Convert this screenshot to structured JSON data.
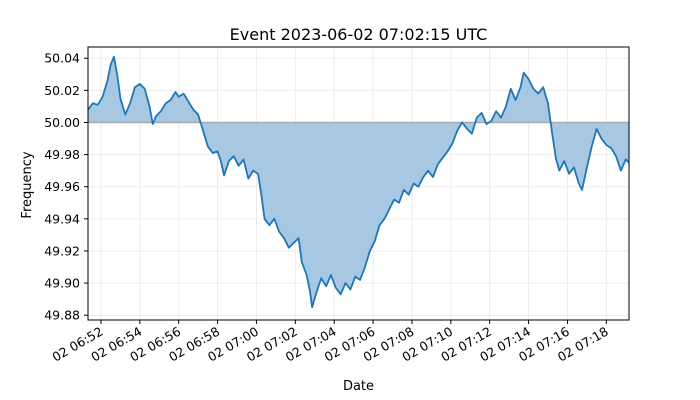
{
  "chart_data": {
    "type": "area",
    "title": "Event 2023-06-02 07:02:15 UTC",
    "xlabel": "Date",
    "ylabel": "Frequency",
    "baseline": 50.0,
    "xlim": [
      "2023-06-02 06:51:20",
      "2023-06-02 07:19:10"
    ],
    "ylim": [
      49.877,
      50.047
    ],
    "grid": true,
    "colors": {
      "line": "#1f77b4",
      "fill": "#a6c8e3",
      "baseline": "#a9a9a9"
    },
    "x_tick_labels": [
      {
        "t": "2023-06-02 06:52",
        "label": "02 06:52"
      },
      {
        "t": "2023-06-02 06:54",
        "label": "02 06:54"
      },
      {
        "t": "2023-06-02 06:56",
        "label": "02 06:56"
      },
      {
        "t": "2023-06-02 06:58",
        "label": "02 06:58"
      },
      {
        "t": "2023-06-02 07:00",
        "label": "02 07:00"
      },
      {
        "t": "2023-06-02 07:02",
        "label": "02 07:02"
      },
      {
        "t": "2023-06-02 07:04",
        "label": "02 07:04"
      },
      {
        "t": "2023-06-02 07:06",
        "label": "02 07:06"
      },
      {
        "t": "2023-06-02 07:08",
        "label": "02 07:08"
      },
      {
        "t": "2023-06-02 07:10",
        "label": "02 07:10"
      },
      {
        "t": "2023-06-02 07:12",
        "label": "02 07:12"
      },
      {
        "t": "2023-06-02 07:14",
        "label": "02 07:14"
      },
      {
        "t": "2023-06-02 07:16",
        "label": "02 07:16"
      },
      {
        "t": "2023-06-02 07:18",
        "label": "02 07:18"
      }
    ],
    "y_tick_labels": [
      {
        "v": 49.88,
        "label": "49.88"
      },
      {
        "v": 49.9,
        "label": "49.90"
      },
      {
        "v": 49.92,
        "label": "49.92"
      },
      {
        "v": 49.94,
        "label": "49.94"
      },
      {
        "v": 49.96,
        "label": "49.96"
      },
      {
        "v": 49.98,
        "label": "49.98"
      },
      {
        "v": 50.0,
        "label": "50.00"
      },
      {
        "v": 50.02,
        "label": "50.02"
      },
      {
        "v": 50.04,
        "label": "50.04"
      }
    ],
    "series": [
      {
        "points": [
          [
            "2023-06-02 06:51:20",
            50.008
          ],
          [
            "2023-06-02 06:51:35",
            50.012
          ],
          [
            "2023-06-02 06:51:50",
            50.011
          ],
          [
            "2023-06-02 06:52:05",
            50.016
          ],
          [
            "2023-06-02 06:52:20",
            50.026
          ],
          [
            "2023-06-02 06:52:30",
            50.036
          ],
          [
            "2023-06-02 06:52:40",
            50.041
          ],
          [
            "2023-06-02 06:52:50",
            50.03
          ],
          [
            "2023-06-02 06:53:00",
            50.015
          ],
          [
            "2023-06-02 06:53:15",
            50.005
          ],
          [
            "2023-06-02 06:53:30",
            50.012
          ],
          [
            "2023-06-02 06:53:45",
            50.022
          ],
          [
            "2023-06-02 06:54:00",
            50.024
          ],
          [
            "2023-06-02 06:54:15",
            50.021
          ],
          [
            "2023-06-02 06:54:30",
            50.01
          ],
          [
            "2023-06-02 06:54:40",
            49.999
          ],
          [
            "2023-06-02 06:54:50",
            50.004
          ],
          [
            "2023-06-02 06:55:05",
            50.007
          ],
          [
            "2023-06-02 06:55:20",
            50.012
          ],
          [
            "2023-06-02 06:55:35",
            50.014
          ],
          [
            "2023-06-02 06:55:50",
            50.019
          ],
          [
            "2023-06-02 06:56:00",
            50.016
          ],
          [
            "2023-06-02 06:56:15",
            50.018
          ],
          [
            "2023-06-02 06:56:30",
            50.013
          ],
          [
            "2023-06-02 06:56:45",
            50.008
          ],
          [
            "2023-06-02 06:57:00",
            50.005
          ],
          [
            "2023-06-02 06:57:15",
            49.995
          ],
          [
            "2023-06-02 06:57:30",
            49.985
          ],
          [
            "2023-06-02 06:57:45",
            49.981
          ],
          [
            "2023-06-02 06:58:00",
            49.982
          ],
          [
            "2023-06-02 06:58:10",
            49.976
          ],
          [
            "2023-06-02 06:58:20",
            49.967
          ],
          [
            "2023-06-02 06:58:35",
            49.976
          ],
          [
            "2023-06-02 06:58:50",
            49.979
          ],
          [
            "2023-06-02 06:59:05",
            49.973
          ],
          [
            "2023-06-02 06:59:20",
            49.977
          ],
          [
            "2023-06-02 06:59:35",
            49.965
          ],
          [
            "2023-06-02 06:59:50",
            49.97
          ],
          [
            "2023-06-02 07:00:05",
            49.968
          ],
          [
            "2023-06-02 07:00:15",
            49.955
          ],
          [
            "2023-06-02 07:00:25",
            49.94
          ],
          [
            "2023-06-02 07:00:40",
            49.936
          ],
          [
            "2023-06-02 07:00:55",
            49.94
          ],
          [
            "2023-06-02 07:01:10",
            49.932
          ],
          [
            "2023-06-02 07:01:25",
            49.928
          ],
          [
            "2023-06-02 07:01:40",
            49.922
          ],
          [
            "2023-06-02 07:01:55",
            49.925
          ],
          [
            "2023-06-02 07:02:10",
            49.928
          ],
          [
            "2023-06-02 07:02:20",
            49.913
          ],
          [
            "2023-06-02 07:02:35",
            49.905
          ],
          [
            "2023-06-02 07:02:45",
            49.895
          ],
          [
            "2023-06-02 07:02:52",
            49.885
          ],
          [
            "2023-06-02 07:03:05",
            49.894
          ],
          [
            "2023-06-02 07:03:20",
            49.903
          ],
          [
            "2023-06-02 07:03:35",
            49.898
          ],
          [
            "2023-06-02 07:03:50",
            49.905
          ],
          [
            "2023-06-02 07:04:05",
            49.897
          ],
          [
            "2023-06-02 07:04:20",
            49.893
          ],
          [
            "2023-06-02 07:04:35",
            49.9
          ],
          [
            "2023-06-02 07:04:50",
            49.896
          ],
          [
            "2023-06-02 07:05:05",
            49.904
          ],
          [
            "2023-06-02 07:05:20",
            49.902
          ],
          [
            "2023-06-02 07:05:35",
            49.91
          ],
          [
            "2023-06-02 07:05:50",
            49.92
          ],
          [
            "2023-06-02 07:06:05",
            49.926
          ],
          [
            "2023-06-02 07:06:20",
            49.936
          ],
          [
            "2023-06-02 07:06:35",
            49.94
          ],
          [
            "2023-06-02 07:06:50",
            49.946
          ],
          [
            "2023-06-02 07:07:05",
            49.952
          ],
          [
            "2023-06-02 07:07:20",
            49.95
          ],
          [
            "2023-06-02 07:07:35",
            49.958
          ],
          [
            "2023-06-02 07:07:50",
            49.955
          ],
          [
            "2023-06-02 07:08:05",
            49.962
          ],
          [
            "2023-06-02 07:08:20",
            49.96
          ],
          [
            "2023-06-02 07:08:35",
            49.966
          ],
          [
            "2023-06-02 07:08:50",
            49.97
          ],
          [
            "2023-06-02 07:09:05",
            49.966
          ],
          [
            "2023-06-02 07:09:20",
            49.974
          ],
          [
            "2023-06-02 07:09:35",
            49.978
          ],
          [
            "2023-06-02 07:09:50",
            49.982
          ],
          [
            "2023-06-02 07:10:05",
            49.987
          ],
          [
            "2023-06-02 07:10:20",
            49.995
          ],
          [
            "2023-06-02 07:10:35",
            50.0
          ],
          [
            "2023-06-02 07:10:50",
            49.996
          ],
          [
            "2023-06-02 07:11:05",
            49.993
          ],
          [
            "2023-06-02 07:11:20",
            50.003
          ],
          [
            "2023-06-02 07:11:35",
            50.006
          ],
          [
            "2023-06-02 07:11:50",
            49.999
          ],
          [
            "2023-06-02 07:12:05",
            50.001
          ],
          [
            "2023-06-02 07:12:20",
            50.007
          ],
          [
            "2023-06-02 07:12:35",
            50.003
          ],
          [
            "2023-06-02 07:12:50",
            50.01
          ],
          [
            "2023-06-02 07:13:05",
            50.021
          ],
          [
            "2023-06-02 07:13:20",
            50.014
          ],
          [
            "2023-06-02 07:13:35",
            50.022
          ],
          [
            "2023-06-02 07:13:45",
            50.031
          ],
          [
            "2023-06-02 07:14:00",
            50.027
          ],
          [
            "2023-06-02 07:14:15",
            50.021
          ],
          [
            "2023-06-02 07:14:30",
            50.018
          ],
          [
            "2023-06-02 07:14:45",
            50.022
          ],
          [
            "2023-06-02 07:15:00",
            50.012
          ],
          [
            "2023-06-02 07:15:15",
            49.99
          ],
          [
            "2023-06-02 07:15:25",
            49.977
          ],
          [
            "2023-06-02 07:15:35",
            49.97
          ],
          [
            "2023-06-02 07:15:50",
            49.976
          ],
          [
            "2023-06-02 07:16:05",
            49.968
          ],
          [
            "2023-06-02 07:16:20",
            49.972
          ],
          [
            "2023-06-02 07:16:35",
            49.962
          ],
          [
            "2023-06-02 07:16:45",
            49.958
          ],
          [
            "2023-06-02 07:17:00",
            49.972
          ],
          [
            "2023-06-02 07:17:15",
            49.985
          ],
          [
            "2023-06-02 07:17:30",
            49.996
          ],
          [
            "2023-06-02 07:17:45",
            49.99
          ],
          [
            "2023-06-02 07:18:00",
            49.986
          ],
          [
            "2023-06-02 07:18:15",
            49.984
          ],
          [
            "2023-06-02 07:18:30",
            49.979
          ],
          [
            "2023-06-02 07:18:45",
            49.97
          ],
          [
            "2023-06-02 07:19:00",
            49.977
          ],
          [
            "2023-06-02 07:19:10",
            49.975
          ]
        ]
      }
    ]
  }
}
